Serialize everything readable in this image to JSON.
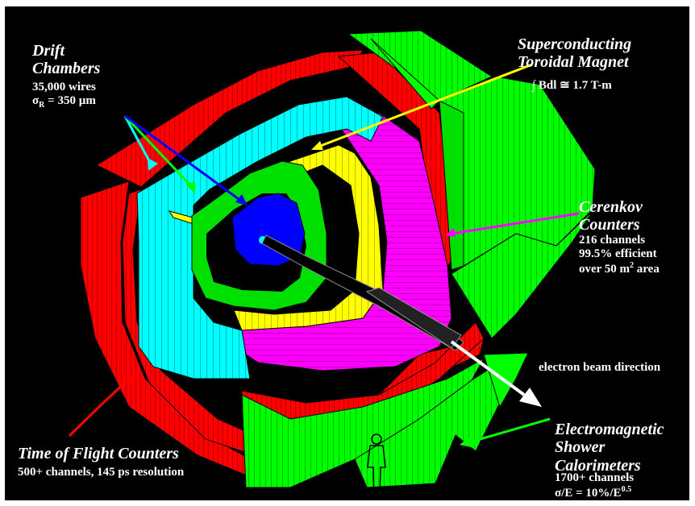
{
  "colors": {
    "background": "#000000",
    "frame": "#ffffff",
    "drift_chambers": "#00ffff",
    "inner_chambers": "#00ff00",
    "vertex_region": "#0000ff",
    "magnet": "#ffff00",
    "cerenkov": "#ff00ff",
    "time_of_flight": "#ff0000",
    "calorimeter": "#00ff00",
    "beamline": "#000000"
  },
  "icons": {
    "person": "person-silhouette-icon",
    "beam_arrow": "arrow-right-icon"
  },
  "labels": {
    "drift": {
      "title_line1": "Drift",
      "title_line2": "Chambers",
      "line1": "35,000 wires",
      "line2_prefix": "σ",
      "line2_sub": "R",
      "line2_suffix": " = 350 µm"
    },
    "magnet": {
      "title_line1": "Superconducting",
      "title_line2": "Toroidal Magnet",
      "formula": "∫ Bdl ≅ 1.7 T-m"
    },
    "cerenkov": {
      "title_line1": "Cerenkov",
      "title_line2": "Counters",
      "line1": "216 channels",
      "line2": "99.5% efficient",
      "line3_prefix": "over 50 m",
      "line3_sup": "2",
      "line3_suffix": " area"
    },
    "beam": {
      "text": "electron beam direction"
    },
    "tof": {
      "title": "Time of Flight Counters",
      "line1": "500+ channels, 145 ps resolution"
    },
    "calorimeter": {
      "title_line1": "Electromagnetic",
      "title_line2": "Shower",
      "title_line3": "Calorimeters",
      "line1": "1700+ channels",
      "line2_prefix": "σ/E = 10%/E",
      "line2_sup": "0.5"
    }
  }
}
